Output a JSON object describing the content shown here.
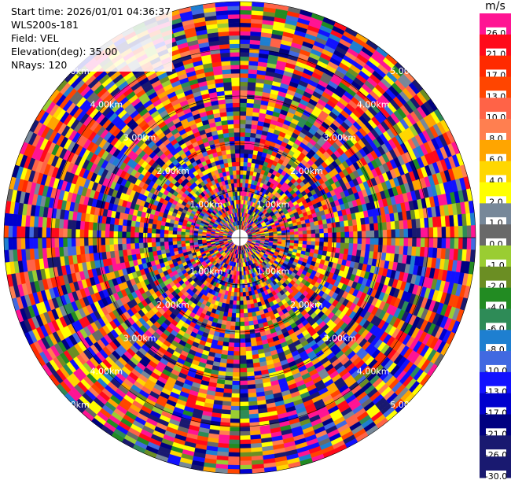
{
  "header": {
    "start_time": "Start time: 2026/01/01 04:36:37",
    "instrument": "WLS200s-181",
    "field": "Field: VEL",
    "elevation": "Elevation(deg): 35.00",
    "nrays": "NRays: 120"
  },
  "colorbar": {
    "unit": "m/s",
    "bands": [
      {
        "label": "26.0",
        "color": "#ff1493"
      },
      {
        "label": "21.0",
        "color": "#ff0a1a"
      },
      {
        "label": "17.0",
        "color": "#ff2a00"
      },
      {
        "label": "13.0",
        "color": "#ff4500"
      },
      {
        "label": "10.0",
        "color": "#ff6347"
      },
      {
        "label": "8.0",
        "color": "#ff7f50"
      },
      {
        "label": "6.0",
        "color": "#ffa500"
      },
      {
        "label": "4.0",
        "color": "#ffd700"
      },
      {
        "label": "2.0",
        "color": "#ffff00"
      },
      {
        "label": "1.0",
        "color": "#778899"
      },
      {
        "label": "0.0",
        "color": "#696969"
      },
      {
        "label": "-1.0",
        "color": "#9acd32"
      },
      {
        "label": "-2.0",
        "color": "#6b8e23"
      },
      {
        "label": "-4.0",
        "color": "#228b22"
      },
      {
        "label": "-6.0",
        "color": "#2e8b57"
      },
      {
        "label": "-8.0",
        "color": "#1e7fd0"
      },
      {
        "label": "-10.0",
        "color": "#4169e1"
      },
      {
        "label": "-13.0",
        "color": "#1111ff"
      },
      {
        "label": "-17.0",
        "color": "#0000cd"
      },
      {
        "label": "-21.0",
        "color": "#000080"
      },
      {
        "label": "-26.0",
        "color": "#191970"
      },
      {
        "label": "-30.0",
        "color": "#191970"
      }
    ]
  },
  "ring_labels": [
    "1.00km",
    "2.00km",
    "3.00km",
    "4.00km",
    "5.00km"
  ]
}
